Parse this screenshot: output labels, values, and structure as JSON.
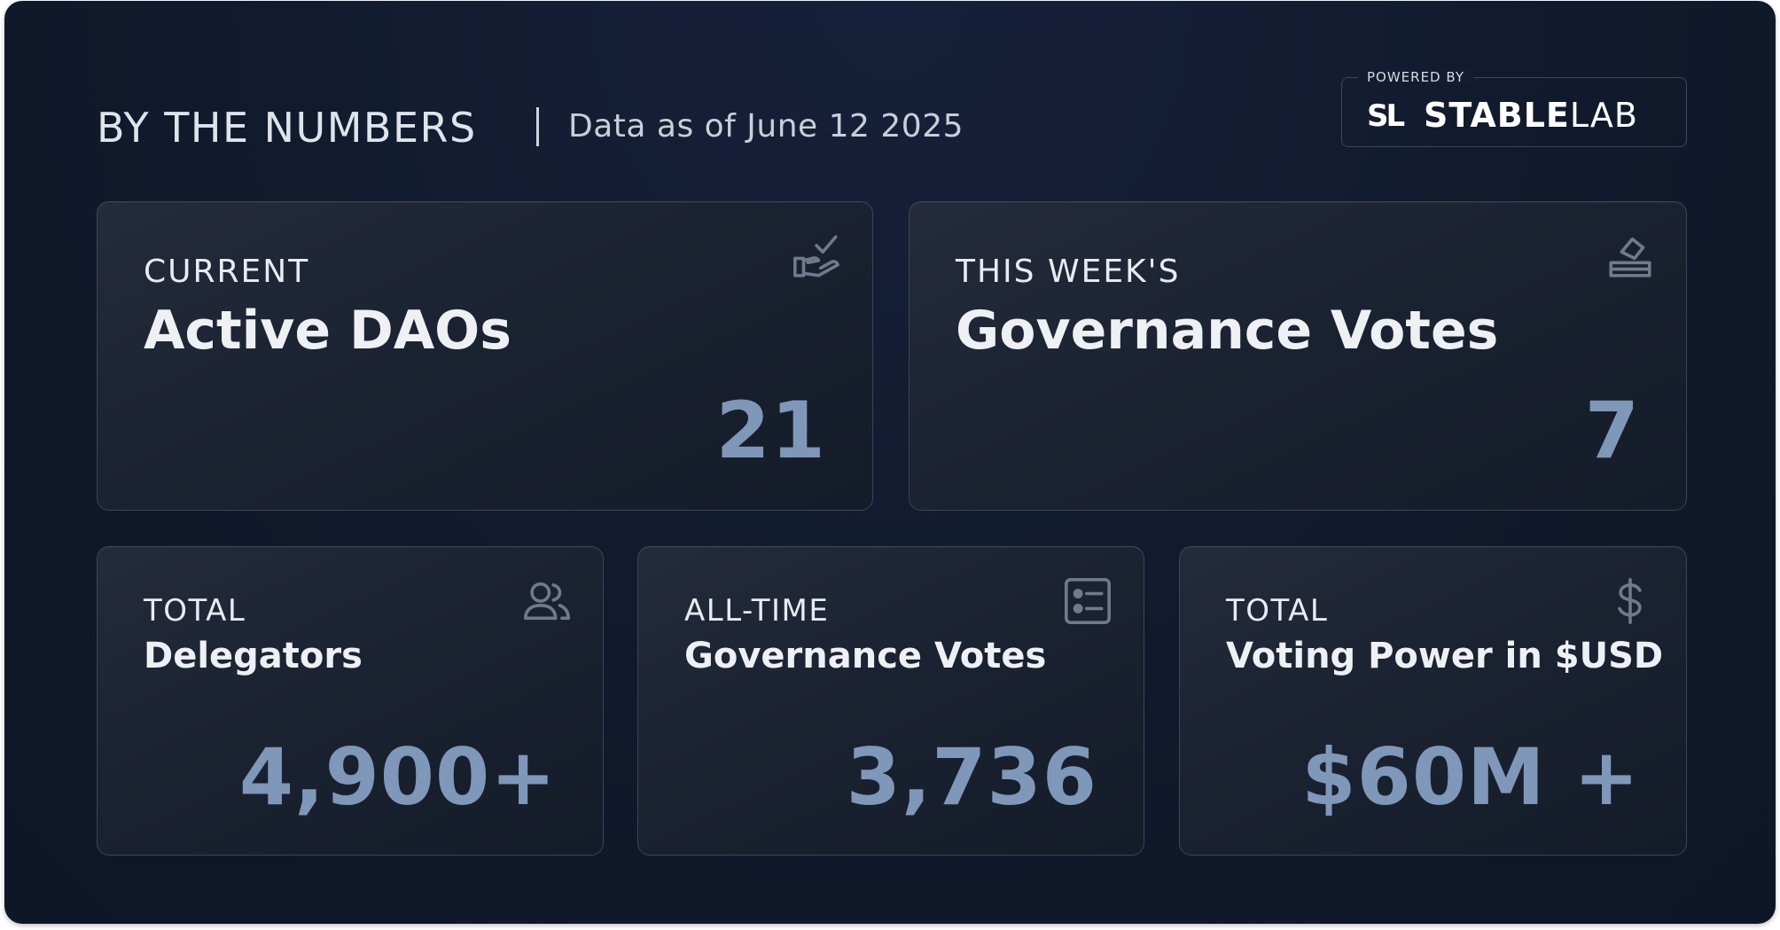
{
  "header": {
    "title": "BY THE NUMBERS",
    "date": "Data as of June 12 2025"
  },
  "brand": {
    "powered_by": "POWERED BY",
    "mark": "SL",
    "name_bold": "STABLE",
    "name_light": "LAB"
  },
  "cards": [
    {
      "kicker": "CURRENT",
      "title": "Active DAOs",
      "value": "21",
      "icon": "hand-check-icon"
    },
    {
      "kicker": "THIS WEEK'S",
      "title": "Governance Votes",
      "value": "7",
      "icon": "ballot-box-icon"
    },
    {
      "kicker": "TOTAL",
      "title": "Delegators",
      "value": "4,900+",
      "icon": "users-icon"
    },
    {
      "kicker": "ALL-TIME",
      "title": "Governance Votes",
      "value": "3,736",
      "icon": "list-icon"
    },
    {
      "kicker": "TOTAL",
      "title": "Voting Power in $USD",
      "value": "$60M +",
      "icon": "dollar-icon"
    }
  ],
  "colors": {
    "background": "#111a2c",
    "value_text": "#7f97b8",
    "card_border": "#3a4558"
  }
}
